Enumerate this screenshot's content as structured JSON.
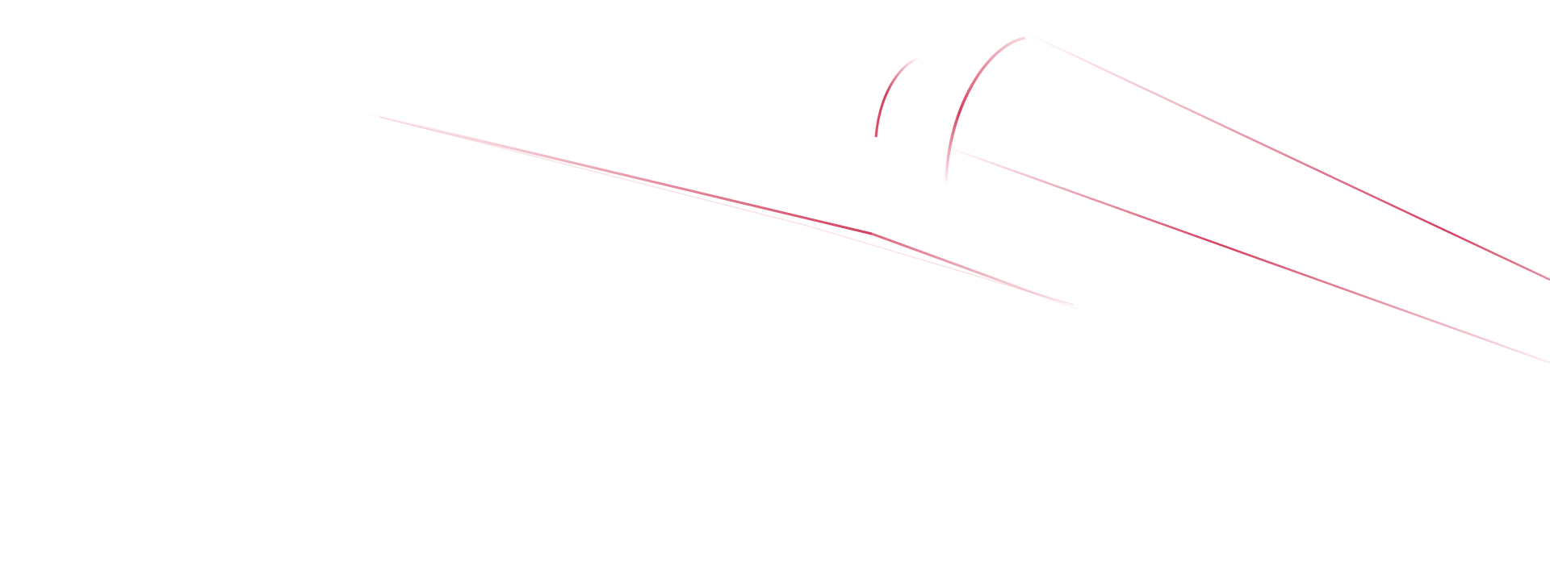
{
  "background_color": "#ffffff",
  "accent_color": "#d43f5e"
}
